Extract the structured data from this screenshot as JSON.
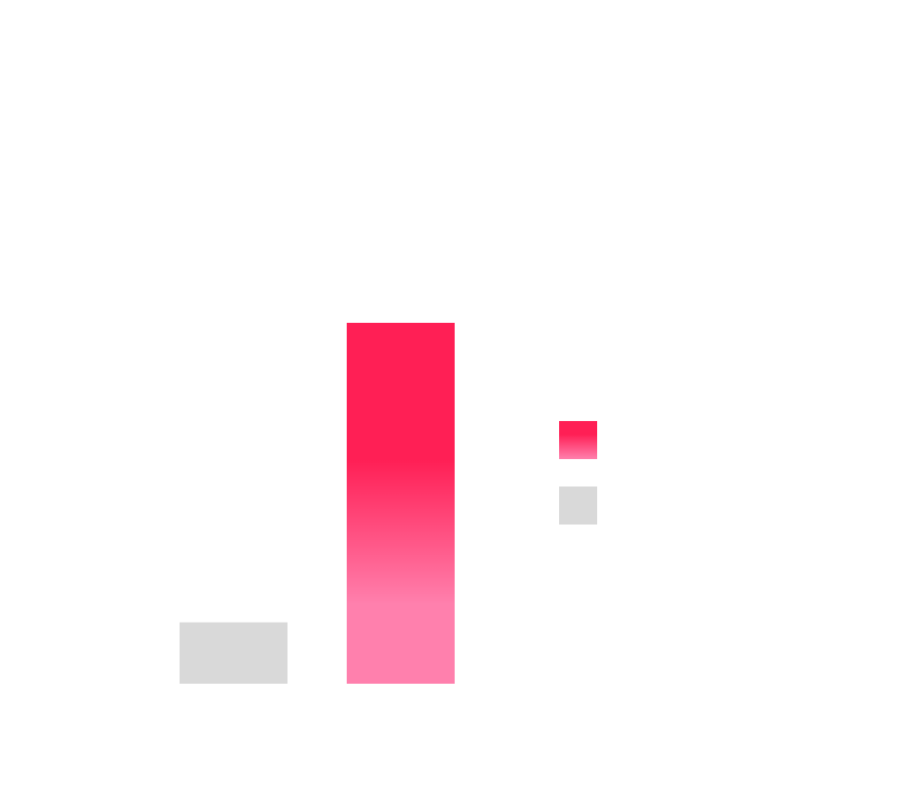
{
  "chart_data": {
    "type": "bar",
    "categories": [
      "",
      ""
    ],
    "series": [
      {
        "values": [
          17,
          100
        ],
        "colors": [
          "#d9d9d9",
          "gradient"
        ]
      }
    ],
    "ylim": [
      0,
      100
    ],
    "grid": false,
    "legend": {
      "placement": "right",
      "entries": [
        {
          "label": "",
          "color": "gradient"
        },
        {
          "label": "",
          "color": "#d9d9d9"
        }
      ]
    },
    "colors": {
      "highlight_top": "#ff1f55",
      "highlight_bottom": "#ff80ad",
      "muted": "#d9d9d9"
    }
  }
}
